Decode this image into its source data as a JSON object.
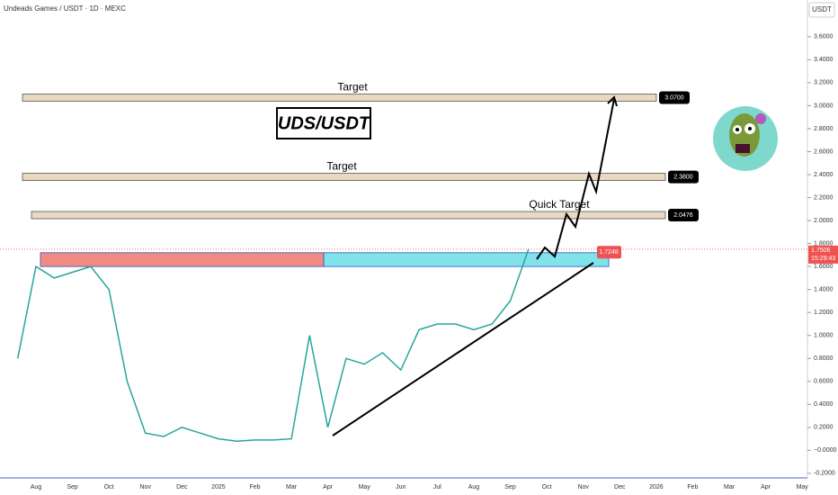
{
  "header": {
    "symbol": "Undeads Games / USDT · 1D · MEXC",
    "currency": "USDT"
  },
  "chart_data": {
    "type": "line",
    "title": "UDS/USDT",
    "color": "#26a69a",
    "categories": [
      null,
      "Aug",
      null,
      "Sep",
      null,
      "Oct",
      null,
      "Nov",
      null,
      "Dec",
      null,
      "2025",
      null,
      "Feb",
      null,
      "Mar",
      null,
      "Apr",
      null,
      "May",
      null,
      "Jun",
      null,
      "Jul",
      null,
      "Aug",
      null,
      "Sep",
      null,
      "Oct",
      null,
      "Nov",
      null,
      "Dec",
      null,
      "2026",
      null,
      "Feb",
      null,
      "Mar",
      null,
      "Apr",
      null,
      "May"
    ],
    "values": [
      0.8,
      1.6,
      1.5,
      1.55,
      1.6,
      1.4,
      0.6,
      0.15,
      0.12,
      0.2,
      0.15,
      0.1,
      0.08,
      0.09,
      0.09,
      0.1,
      1.0,
      0.2,
      0.8,
      0.75,
      0.85,
      0.7,
      1.05,
      1.1,
      1.1,
      1.05,
      1.1,
      1.3,
      1.75,
      null,
      null,
      null,
      null,
      null,
      null,
      null,
      null,
      null,
      null,
      null,
      null,
      null,
      null,
      null
    ],
    "ylim": [
      -0.24,
      3.92
    ],
    "yticks": [
      {
        "value": -0.2,
        "label": "-0.2000"
      },
      {
        "value": 0,
        "label": "−0.0000"
      },
      {
        "value": 0.2,
        "label": "0.2000"
      },
      {
        "value": 0.4,
        "label": "0.4000"
      },
      {
        "value": 0.6,
        "label": "0.6000"
      },
      {
        "value": 0.8,
        "label": "0.8000"
      },
      {
        "value": 1.0,
        "label": "1.0000"
      },
      {
        "value": 1.2,
        "label": "1.2000"
      },
      {
        "value": 1.4,
        "label": "1.4000"
      },
      {
        "value": 1.6,
        "label": "1.6000"
      },
      {
        "value": 1.8,
        "label": "1.8000"
      },
      {
        "value": 2.0,
        "label": "2.0000"
      },
      {
        "value": 2.2,
        "label": "2.2000"
      },
      {
        "value": 2.4,
        "label": "2.4000"
      },
      {
        "value": 2.6,
        "label": "2.6000"
      },
      {
        "value": 2.8,
        "label": "2.8000"
      },
      {
        "value": 3.0,
        "label": "3.0000"
      },
      {
        "value": 3.2,
        "label": "3.2000"
      },
      {
        "value": 3.4,
        "label": "3.4000"
      },
      {
        "value": 3.6,
        "label": "3.6000"
      }
    ],
    "levels": [
      {
        "label": "Target",
        "value": 3.07,
        "value_label": "3.0700"
      },
      {
        "label": "Target",
        "value": 2.38,
        "value_label": "2.3800"
      },
      {
        "label": "Quick Target",
        "value": 2.0476,
        "value_label": "2.0476"
      }
    ],
    "zones": [
      {
        "color": "#f28b82",
        "low": 1.6,
        "high": 1.72
      },
      {
        "color": "#80e3ea",
        "low": 1.6,
        "high": 1.72
      }
    ],
    "price_lines": [
      {
        "value": 1.7506,
        "value_label": "1.7506",
        "countdown": "15:29:43"
      },
      {
        "value": 1.7248,
        "value_label": "1.7248"
      }
    ]
  }
}
